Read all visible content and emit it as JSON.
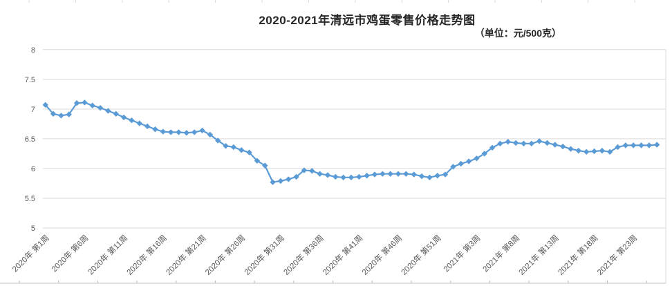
{
  "title": "2020-2021年清远市鸡蛋零售价格走势图",
  "subtitle": "（单位：元/500克）",
  "chart_data": {
    "type": "line",
    "title": "2020-2021年清远市鸡蛋零售价格走势图",
    "unit_note": "（单位：元/500克）",
    "grid": "horizontal",
    "legend": "none",
    "marker": "diamond",
    "line_color": "#5b9bd5",
    "gridline_color": "#d9d9d9",
    "axis_label_color": "#595959",
    "ylim": [
      5,
      8
    ],
    "y_tick_labels": [
      "5",
      "5.5",
      "6",
      "6.5",
      "7",
      "7.5",
      "8"
    ],
    "x_label_every": 5,
    "x_tick_labels": [
      "2020年 第1周",
      "2020年 第6周",
      "2020年 第11周",
      "2020年 第16周",
      "2020年 第21周",
      "2020年 第26周",
      "2020年 第31周",
      "2020年 第36周",
      "2020年 第41周",
      "2020年 第46周",
      "2020年 第51周",
      "2021年 第3周",
      "2021年 第8周",
      "2021年 第13周",
      "2021年 第18周",
      "2021年 第23周"
    ],
    "x_description": "每周一个数据点，2020年第1周至2021年第26周",
    "series": [
      {
        "values": [
          7.07,
          6.92,
          6.89,
          6.91,
          7.1,
          7.11,
          7.06,
          7.02,
          6.97,
          6.92,
          6.86,
          6.81,
          6.76,
          6.71,
          6.66,
          6.62,
          6.61,
          6.61,
          6.6,
          6.61,
          6.64,
          6.57,
          6.47,
          6.38,
          6.36,
          6.31,
          6.27,
          6.13,
          6.05,
          5.77,
          5.79,
          5.82,
          5.86,
          5.97,
          5.96,
          5.91,
          5.89,
          5.86,
          5.85,
          5.85,
          5.86,
          5.88,
          5.9,
          5.91,
          5.91,
          5.91,
          5.91,
          5.9,
          5.87,
          5.85,
          5.88,
          5.9,
          6.03,
          6.08,
          6.12,
          6.17,
          6.25,
          6.35,
          6.42,
          6.45,
          6.43,
          6.42,
          6.42,
          6.46,
          6.43,
          6.4,
          6.37,
          6.33,
          6.3,
          6.28,
          6.29,
          6.3,
          6.28,
          6.36,
          6.39,
          6.39,
          6.39,
          6.39,
          6.4
        ]
      }
    ]
  }
}
